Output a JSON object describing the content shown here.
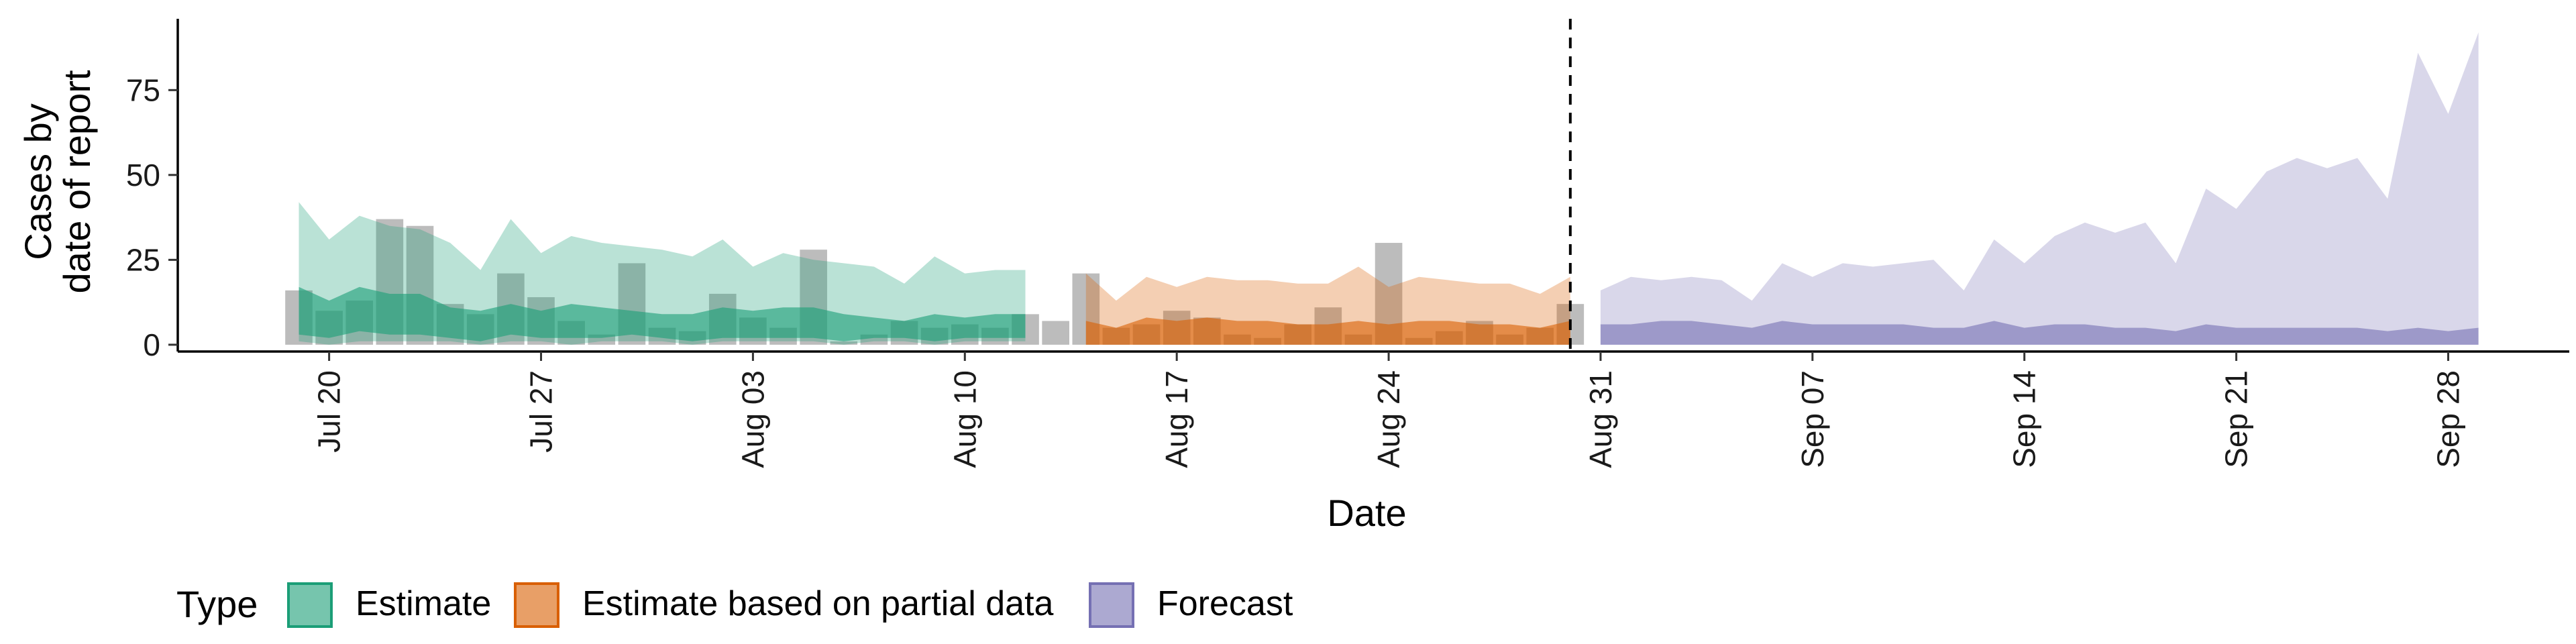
{
  "chart_data": {
    "type": "area",
    "title": "",
    "xlabel": "Date",
    "ylabel_lines": [
      "Cases by",
      "date of report"
    ],
    "ylim": [
      -2,
      96
    ],
    "y_ticks": [
      0,
      25,
      50,
      75
    ],
    "x_ticks": [
      {
        "date": "2020-07-20",
        "label": "Jul 20"
      },
      {
        "date": "2020-07-27",
        "label": "Jul 27"
      },
      {
        "date": "2020-08-03",
        "label": "Aug 03"
      },
      {
        "date": "2020-08-10",
        "label": "Aug 10"
      },
      {
        "date": "2020-08-17",
        "label": "Aug 17"
      },
      {
        "date": "2020-08-24",
        "label": "Aug 24"
      },
      {
        "date": "2020-08-31",
        "label": "Aug 31"
      },
      {
        "date": "2020-09-07",
        "label": "Sep 07"
      },
      {
        "date": "2020-09-14",
        "label": "Sep 14"
      },
      {
        "date": "2020-09-21",
        "label": "Sep 21"
      },
      {
        "date": "2020-09-28",
        "label": "Sep 28"
      }
    ],
    "xlim": [
      "2020-07-15",
      "2020-10-02"
    ],
    "forecast_date": "2020-08-30",
    "colors": {
      "estimate": "#1b9e77",
      "partial": "#d95f02",
      "forecast": "#7570b3",
      "bars": "#a0a0a0",
      "vline": "#000000"
    },
    "observed_cases": {
      "dates": [
        "2020-07-19",
        "2020-07-20",
        "2020-07-21",
        "2020-07-22",
        "2020-07-23",
        "2020-07-24",
        "2020-07-25",
        "2020-07-26",
        "2020-07-27",
        "2020-07-28",
        "2020-07-29",
        "2020-07-30",
        "2020-07-31",
        "2020-08-01",
        "2020-08-02",
        "2020-08-03",
        "2020-08-04",
        "2020-08-05",
        "2020-08-06",
        "2020-08-07",
        "2020-08-08",
        "2020-08-09",
        "2020-08-10",
        "2020-08-11",
        "2020-08-12",
        "2020-08-13",
        "2020-08-14",
        "2020-08-15",
        "2020-08-16",
        "2020-08-17",
        "2020-08-18",
        "2020-08-19",
        "2020-08-20",
        "2020-08-21",
        "2020-08-22",
        "2020-08-23",
        "2020-08-24",
        "2020-08-25",
        "2020-08-26",
        "2020-08-27",
        "2020-08-28",
        "2020-08-29",
        "2020-08-30"
      ],
      "values": [
        16,
        10,
        13,
        37,
        35,
        12,
        9,
        21,
        14,
        7,
        3,
        24,
        5,
        4,
        15,
        8,
        5,
        28,
        1,
        3,
        7,
        5,
        6,
        5,
        9,
        7,
        21,
        5,
        6,
        10,
        8,
        3,
        2,
        6,
        11,
        3,
        30,
        2,
        4,
        7,
        3,
        5,
        12
      ]
    },
    "series": [
      {
        "name": "Estimate",
        "key": "estimate",
        "dates": [
          "2020-07-19",
          "2020-07-20",
          "2020-07-21",
          "2020-07-22",
          "2020-07-23",
          "2020-07-24",
          "2020-07-25",
          "2020-07-26",
          "2020-07-27",
          "2020-07-28",
          "2020-07-29",
          "2020-07-30",
          "2020-07-31",
          "2020-08-01",
          "2020-08-02",
          "2020-08-03",
          "2020-08-04",
          "2020-08-05",
          "2020-08-06",
          "2020-08-07",
          "2020-08-08",
          "2020-08-09",
          "2020-08-10",
          "2020-08-11",
          "2020-08-12"
        ],
        "lower90": [
          1,
          0,
          1,
          1,
          1,
          1,
          0,
          1,
          1,
          0,
          1,
          1,
          1,
          0,
          1,
          1,
          1,
          1,
          0,
          1,
          1,
          0,
          1,
          1,
          1
        ],
        "upper90": [
          42,
          31,
          38,
          35,
          34,
          30,
          22,
          37,
          27,
          32,
          30,
          29,
          28,
          26,
          31,
          23,
          27,
          25,
          24,
          23,
          18,
          26,
          21,
          22,
          22
        ],
        "lower50": [
          3,
          2,
          4,
          3,
          3,
          2,
          1,
          3,
          2,
          2,
          2,
          3,
          2,
          1,
          2,
          2,
          2,
          2,
          1,
          2,
          2,
          1,
          2,
          2,
          2
        ],
        "upper50": [
          17,
          13,
          17,
          15,
          15,
          11,
          10,
          12,
          10,
          12,
          11,
          10,
          9,
          9,
          11,
          10,
          11,
          11,
          9,
          8,
          7,
          9,
          8,
          9,
          9
        ]
      },
      {
        "name": "Estimate based on partial data",
        "key": "partial",
        "dates": [
          "2020-08-14",
          "2020-08-15",
          "2020-08-16",
          "2020-08-17",
          "2020-08-18",
          "2020-08-19",
          "2020-08-20",
          "2020-08-21",
          "2020-08-22",
          "2020-08-23",
          "2020-08-24",
          "2020-08-25",
          "2020-08-26",
          "2020-08-27",
          "2020-08-28",
          "2020-08-29",
          "2020-08-30"
        ],
        "lower90": [
          0,
          0,
          0,
          0,
          0,
          0,
          0,
          0,
          0,
          0,
          0,
          0,
          0,
          0,
          0,
          0,
          0
        ],
        "upper90": [
          21,
          13,
          20,
          17,
          20,
          19,
          19,
          18,
          18,
          23,
          17,
          20,
          19,
          18,
          18,
          15,
          20
        ],
        "lower50": [
          0,
          0,
          0,
          0,
          0,
          0,
          0,
          0,
          0,
          0,
          0,
          0,
          0,
          0,
          0,
          0,
          0
        ],
        "upper50": [
          7,
          5,
          8,
          7,
          8,
          7,
          7,
          6,
          6,
          7,
          6,
          7,
          7,
          6,
          6,
          5,
          7
        ]
      },
      {
        "name": "Forecast",
        "key": "forecast",
        "dates": [
          "2020-08-31",
          "2020-09-01",
          "2020-09-02",
          "2020-09-03",
          "2020-09-04",
          "2020-09-05",
          "2020-09-06",
          "2020-09-07",
          "2020-09-08",
          "2020-09-09",
          "2020-09-10",
          "2020-09-11",
          "2020-09-12",
          "2020-09-13",
          "2020-09-14",
          "2020-09-15",
          "2020-09-16",
          "2020-09-17",
          "2020-09-18",
          "2020-09-19",
          "2020-09-20",
          "2020-09-21",
          "2020-09-22",
          "2020-09-23",
          "2020-09-24",
          "2020-09-25",
          "2020-09-26",
          "2020-09-27",
          "2020-09-28",
          "2020-09-29"
        ],
        "lower90": [
          0,
          0,
          0,
          0,
          0,
          0,
          0,
          0,
          0,
          0,
          0,
          0,
          0,
          0,
          0,
          0,
          0,
          0,
          0,
          0,
          0,
          0,
          0,
          0,
          0,
          0,
          0,
          0,
          0,
          0
        ],
        "upper90": [
          16,
          20,
          19,
          20,
          19,
          13,
          24,
          20,
          24,
          23,
          24,
          25,
          16,
          31,
          24,
          32,
          36,
          33,
          36,
          24,
          46,
          40,
          51,
          55,
          52,
          55,
          43,
          86,
          68,
          92
        ],
        "lower50": [
          0,
          0,
          0,
          0,
          0,
          0,
          0,
          0,
          0,
          0,
          0,
          0,
          0,
          0,
          0,
          0,
          0,
          0,
          0,
          0,
          0,
          0,
          0,
          0,
          0,
          0,
          0,
          0,
          0,
          0
        ],
        "upper50": [
          6,
          6,
          7,
          7,
          6,
          5,
          7,
          6,
          6,
          6,
          6,
          5,
          5,
          7,
          5,
          6,
          6,
          5,
          5,
          4,
          6,
          5,
          5,
          5,
          5,
          5,
          4,
          5,
          4,
          5
        ]
      }
    ],
    "legend": {
      "title": "Type",
      "position": "bottom",
      "entries": [
        {
          "label": "Estimate",
          "key": "estimate"
        },
        {
          "label": "Estimate based on partial data",
          "key": "partial"
        },
        {
          "label": "Forecast",
          "key": "forecast"
        }
      ]
    }
  }
}
